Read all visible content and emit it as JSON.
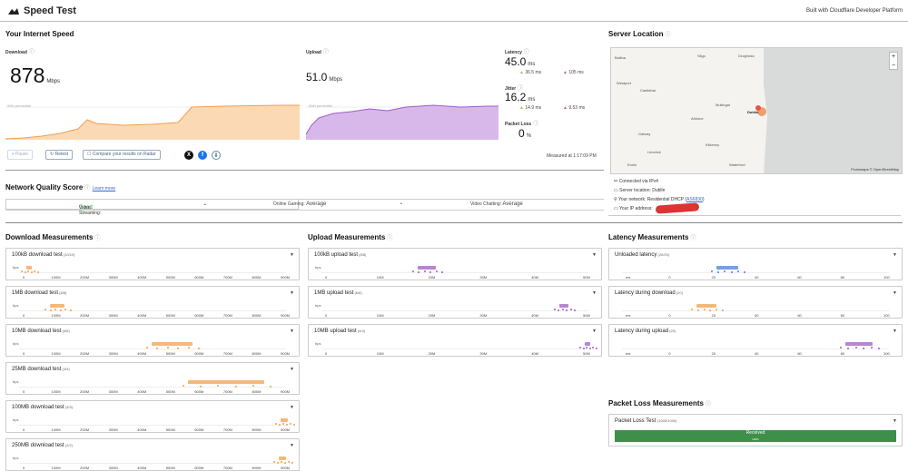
{
  "header": {
    "title": "Speed Test",
    "built_with": "Built with Cloudflare Developer Platform"
  },
  "speed": {
    "section_title": "Your Internet Speed",
    "download_label": "Download",
    "download_value": "878",
    "download_unit": "Mbps",
    "upload_label": "Upload",
    "upload_value": "51.0",
    "upload_unit": "Mbps",
    "latency_label": "Latency",
    "latency_value": "45.0",
    "latency_unit": "ms",
    "latency_down": "36.5 ms",
    "latency_up": "105 ms",
    "jitter_label": "Jitter",
    "jitter_value": "16.2",
    "jitter_unit": "ms",
    "jitter_down": "14.9 ms",
    "jitter_up": "9.53 ms",
    "loss_label": "Packet Loss",
    "loss_value": "0",
    "loss_unit": "%",
    "download_chart_caption": "90th percentile",
    "upload_chart_caption": "90th percentile",
    "measured_at": "Measured at 1:17:09 PM"
  },
  "actions": {
    "pause": "Pause",
    "retest": "Retest",
    "compare": "Compare your results on Radar"
  },
  "quality": {
    "title": "Network Quality Score",
    "learn_more": "Learn more",
    "streaming_label": "Video Streaming:",
    "streaming_value": "Good",
    "gaming_label": "Online Gaming:",
    "gaming_value": "Average",
    "chatting_label": "Video Chatting:",
    "chatting_value": "Average"
  },
  "server": {
    "title": "Server Location",
    "connected": "Connected via  IPv4",
    "location": "Server location:  Dublin",
    "network": "Your network:  Residential DHCP",
    "asn": "AS6830",
    "ip": "Your IP address:",
    "map_attribution": "Protomaps © OpenStreetMap",
    "towns": [
      "Ballina",
      "Sligo",
      "Westport",
      "Castlebar",
      "Athlone",
      "Galway",
      "Mullingar",
      "Drogheda",
      "Dublin",
      "Kilkenny",
      "Waterford",
      "Limerick",
      "Ennis"
    ]
  },
  "download_measurements": {
    "title": "Download Measurements",
    "cards": [
      {
        "name": "100kB download test",
        "count": "(10/10)"
      },
      {
        "name": "1MB download test",
        "count": "(8/8)"
      },
      {
        "name": "10MB download test",
        "count": "(6/6)"
      },
      {
        "name": "25MB download test",
        "count": "(4/4)"
      },
      {
        "name": "100MB download test",
        "count": "(3/3)"
      },
      {
        "name": "250MB download test",
        "count": "(2/2)"
      }
    ],
    "axis": [
      "0",
      "100M",
      "200M",
      "300M",
      "400M",
      "500M",
      "600M",
      "700M",
      "800M",
      "900M"
    ]
  },
  "upload_measurements": {
    "title": "Upload Measurements",
    "cards": [
      {
        "name": "100kB upload test",
        "count": "(8/8)"
      },
      {
        "name": "1MB upload test",
        "count": "(6/6)"
      },
      {
        "name": "10MB upload test",
        "count": "(4/4)"
      }
    ],
    "axis": [
      "0",
      "10M",
      "20M",
      "30M",
      "40M",
      "50M"
    ]
  },
  "latency_measurements": {
    "title": "Latency Measurements",
    "cards": [
      {
        "name": "Unloaded latency",
        "count": "(20/20)"
      },
      {
        "name": "Latency during download",
        "count": "(20)"
      },
      {
        "name": "Latency during upload",
        "count": "(20)"
      }
    ],
    "axis": [
      "ms",
      "0",
      "20",
      "40",
      "60",
      "80",
      "100"
    ]
  },
  "packet_loss": {
    "title": "Packet Loss Measurements",
    "card": "Packet Loss Test",
    "count": "(1000/1000)",
    "received": "Received",
    "received_pct": "100%"
  },
  "axis_unit": "bps",
  "colors": {
    "download": "#f0a04b",
    "upload": "#a05cc8",
    "latency": "#4a7fd6",
    "good": "#2a8a3a",
    "received": "#3e8f4a"
  }
}
